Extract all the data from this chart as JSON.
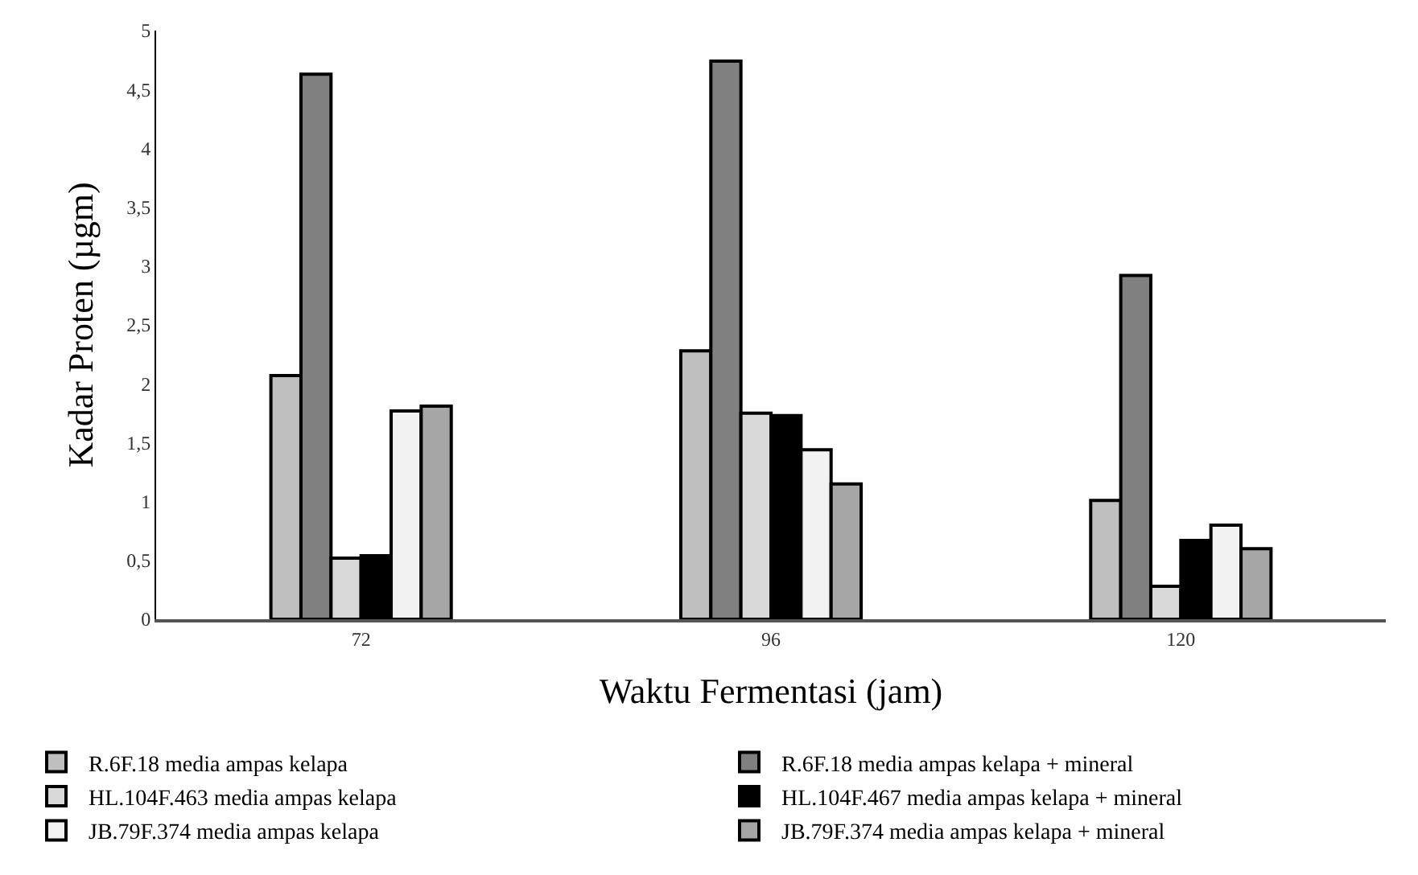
{
  "chart_data": {
    "type": "bar",
    "xlabel": "Waktu Fermentasi (jam)",
    "ylabel": "Kadar Proten (µgm)",
    "categories": [
      "72",
      "96",
      "120"
    ],
    "series": [
      {
        "name": "R.6F.18 media ampas kelapa",
        "color": "#bfbfbf",
        "values": [
          2.07,
          2.28,
          1.01
        ]
      },
      {
        "name": "R.6F.18 media ampas kelapa + mineral",
        "color": "#808080",
        "values": [
          4.63,
          4.74,
          2.92
        ]
      },
      {
        "name": "HL.104F.463 media ampas kelapa",
        "color": "#d9d9d9",
        "values": [
          0.52,
          1.75,
          0.28
        ]
      },
      {
        "name": "HL.104F.467 media ampas kelapa + mineral",
        "color": "#000000",
        "values": [
          0.54,
          1.73,
          0.67
        ]
      },
      {
        "name": "JB.79F.374 media ampas kelapa",
        "color": "#f2f2f2",
        "values": [
          1.77,
          1.44,
          0.8
        ]
      },
      {
        "name": "JB.79F.374 media ampas kelapa + mineral",
        "color": "#a6a6a6",
        "values": [
          1.81,
          1.15,
          0.6
        ]
      }
    ],
    "ylim": [
      0,
      5
    ],
    "yticks": [
      0,
      {
        "value": 0.5,
        "label": "0,5"
      },
      1,
      {
        "value": 1.5,
        "label": "1,5"
      },
      2,
      {
        "value": 2.5,
        "label": "2,5"
      },
      3,
      {
        "value": 3.5,
        "label": "3,5"
      },
      4,
      {
        "value": 4.5,
        "label": "4,5"
      },
      5
    ],
    "legend": "bottom"
  }
}
